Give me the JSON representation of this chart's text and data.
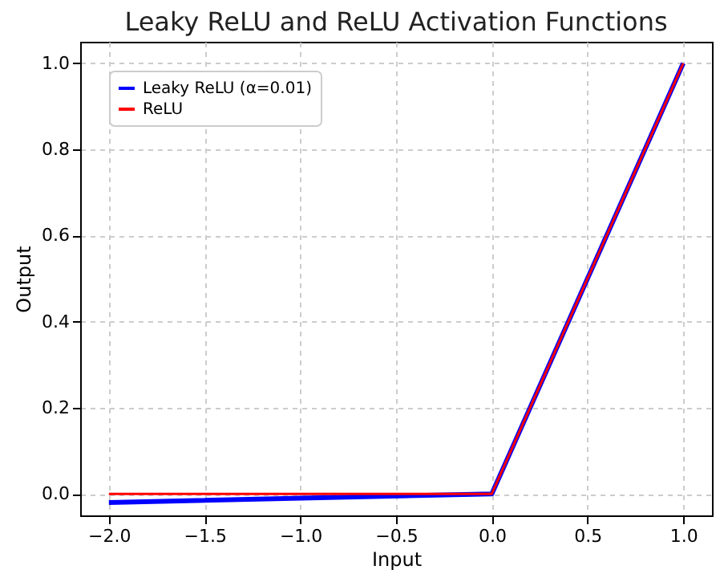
{
  "chart_data": {
    "type": "line",
    "title": "Leaky ReLU and ReLU Activation Functions",
    "xlabel": "Input",
    "ylabel": "Output",
    "x": [
      -2,
      0,
      1
    ],
    "series": [
      {
        "name": "Leaky ReLU (α=0.01)",
        "color": "#0000ff",
        "values": [
          -0.02,
          0,
          1
        ]
      },
      {
        "name": "ReLU",
        "color": "#ff0000",
        "values": [
          0,
          0,
          1
        ]
      }
    ],
    "xlim": [
      -2.15,
      1.15
    ],
    "ylim": [
      -0.05,
      1.05
    ],
    "xticks": [
      {
        "value": -2,
        "label": "−2.0"
      },
      {
        "value": -1.5,
        "label": "−1.5"
      },
      {
        "value": -1,
        "label": "−1.0"
      },
      {
        "value": -0.5,
        "label": "−0.5"
      },
      {
        "value": 0,
        "label": "0.0"
      },
      {
        "value": 0.5,
        "label": "0.5"
      },
      {
        "value": 1,
        "label": "1.0"
      }
    ],
    "yticks": [
      {
        "value": 0,
        "label": "0.0"
      },
      {
        "value": 0.2,
        "label": "0.2"
      },
      {
        "value": 0.4,
        "label": "0.4"
      },
      {
        "value": 0.6,
        "label": "0.6"
      },
      {
        "value": 0.8,
        "label": "0.8"
      },
      {
        "value": 1,
        "label": "1.0"
      }
    ],
    "grid": true,
    "legend": "top left"
  }
}
